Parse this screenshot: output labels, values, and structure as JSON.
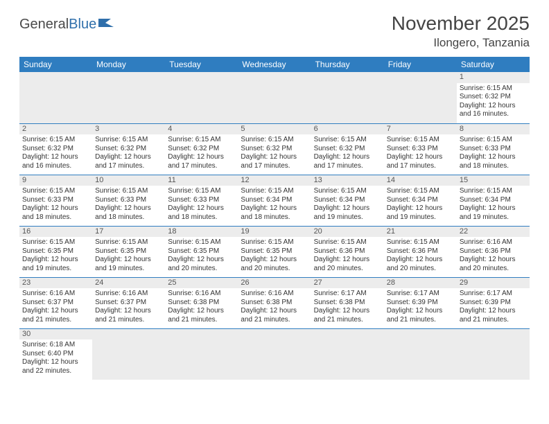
{
  "logo": {
    "text1": "General",
    "text2": "Blue"
  },
  "title": "November 2025",
  "location": "Ilongero, Tanzania",
  "colors": {
    "header_bg": "#2f7dc0",
    "header_text": "#ffffff",
    "border": "#2f7dc0",
    "empty_bg": "#ececec",
    "text": "#333333"
  },
  "weekdays": [
    "Sunday",
    "Monday",
    "Tuesday",
    "Wednesday",
    "Thursday",
    "Friday",
    "Saturday"
  ],
  "weeks": [
    [
      null,
      null,
      null,
      null,
      null,
      null,
      {
        "d": "1",
        "sr": "6:15 AM",
        "ss": "6:32 PM",
        "dl": "12 hours and 16 minutes."
      }
    ],
    [
      {
        "d": "2",
        "sr": "6:15 AM",
        "ss": "6:32 PM",
        "dl": "12 hours and 16 minutes."
      },
      {
        "d": "3",
        "sr": "6:15 AM",
        "ss": "6:32 PM",
        "dl": "12 hours and 17 minutes."
      },
      {
        "d": "4",
        "sr": "6:15 AM",
        "ss": "6:32 PM",
        "dl": "12 hours and 17 minutes."
      },
      {
        "d": "5",
        "sr": "6:15 AM",
        "ss": "6:32 PM",
        "dl": "12 hours and 17 minutes."
      },
      {
        "d": "6",
        "sr": "6:15 AM",
        "ss": "6:32 PM",
        "dl": "12 hours and 17 minutes."
      },
      {
        "d": "7",
        "sr": "6:15 AM",
        "ss": "6:33 PM",
        "dl": "12 hours and 17 minutes."
      },
      {
        "d": "8",
        "sr": "6:15 AM",
        "ss": "6:33 PM",
        "dl": "12 hours and 18 minutes."
      }
    ],
    [
      {
        "d": "9",
        "sr": "6:15 AM",
        "ss": "6:33 PM",
        "dl": "12 hours and 18 minutes."
      },
      {
        "d": "10",
        "sr": "6:15 AM",
        "ss": "6:33 PM",
        "dl": "12 hours and 18 minutes."
      },
      {
        "d": "11",
        "sr": "6:15 AM",
        "ss": "6:33 PM",
        "dl": "12 hours and 18 minutes."
      },
      {
        "d": "12",
        "sr": "6:15 AM",
        "ss": "6:34 PM",
        "dl": "12 hours and 18 minutes."
      },
      {
        "d": "13",
        "sr": "6:15 AM",
        "ss": "6:34 PM",
        "dl": "12 hours and 19 minutes."
      },
      {
        "d": "14",
        "sr": "6:15 AM",
        "ss": "6:34 PM",
        "dl": "12 hours and 19 minutes."
      },
      {
        "d": "15",
        "sr": "6:15 AM",
        "ss": "6:34 PM",
        "dl": "12 hours and 19 minutes."
      }
    ],
    [
      {
        "d": "16",
        "sr": "6:15 AM",
        "ss": "6:35 PM",
        "dl": "12 hours and 19 minutes."
      },
      {
        "d": "17",
        "sr": "6:15 AM",
        "ss": "6:35 PM",
        "dl": "12 hours and 19 minutes."
      },
      {
        "d": "18",
        "sr": "6:15 AM",
        "ss": "6:35 PM",
        "dl": "12 hours and 20 minutes."
      },
      {
        "d": "19",
        "sr": "6:15 AM",
        "ss": "6:35 PM",
        "dl": "12 hours and 20 minutes."
      },
      {
        "d": "20",
        "sr": "6:15 AM",
        "ss": "6:36 PM",
        "dl": "12 hours and 20 minutes."
      },
      {
        "d": "21",
        "sr": "6:15 AM",
        "ss": "6:36 PM",
        "dl": "12 hours and 20 minutes."
      },
      {
        "d": "22",
        "sr": "6:16 AM",
        "ss": "6:36 PM",
        "dl": "12 hours and 20 minutes."
      }
    ],
    [
      {
        "d": "23",
        "sr": "6:16 AM",
        "ss": "6:37 PM",
        "dl": "12 hours and 21 minutes."
      },
      {
        "d": "24",
        "sr": "6:16 AM",
        "ss": "6:37 PM",
        "dl": "12 hours and 21 minutes."
      },
      {
        "d": "25",
        "sr": "6:16 AM",
        "ss": "6:38 PM",
        "dl": "12 hours and 21 minutes."
      },
      {
        "d": "26",
        "sr": "6:16 AM",
        "ss": "6:38 PM",
        "dl": "12 hours and 21 minutes."
      },
      {
        "d": "27",
        "sr": "6:17 AM",
        "ss": "6:38 PM",
        "dl": "12 hours and 21 minutes."
      },
      {
        "d": "28",
        "sr": "6:17 AM",
        "ss": "6:39 PM",
        "dl": "12 hours and 21 minutes."
      },
      {
        "d": "29",
        "sr": "6:17 AM",
        "ss": "6:39 PM",
        "dl": "12 hours and 21 minutes."
      }
    ],
    [
      {
        "d": "30",
        "sr": "6:18 AM",
        "ss": "6:40 PM",
        "dl": "12 hours and 22 minutes."
      },
      null,
      null,
      null,
      null,
      null,
      null
    ]
  ],
  "labels": {
    "sunrise": "Sunrise: ",
    "sunset": "Sunset: ",
    "daylight": "Daylight: "
  }
}
